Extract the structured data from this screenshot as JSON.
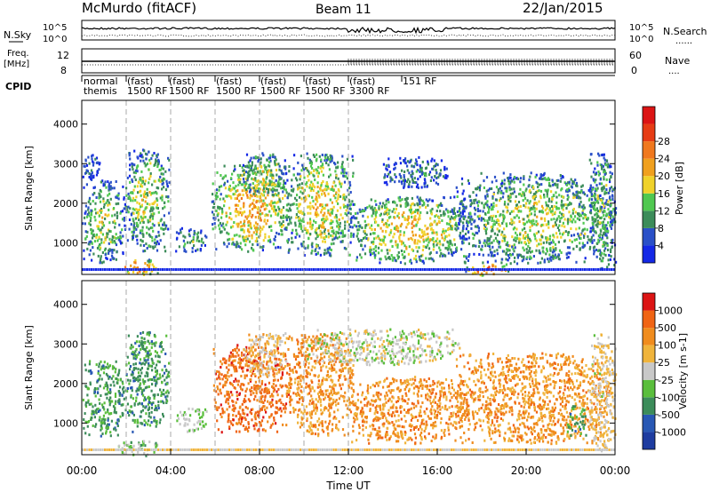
{
  "header": {
    "station": "McMurdo (fitACF)",
    "beam": "Beam 11",
    "date": "22/Jan/2015"
  },
  "noise_panel": {
    "left_label": "N.Sky",
    "right_label": "N.Search",
    "right_dots": "......",
    "ticks_left": [
      "10^5",
      "10^0"
    ],
    "ticks_right": [
      "10^5",
      "10^0"
    ]
  },
  "freq_panel": {
    "left_label_1": "Freq.",
    "left_label_2": "[MHz]",
    "right_label": "Nave",
    "right_dots": "....",
    "ticks_left": [
      "12",
      "8"
    ],
    "ticks_right": [
      "60",
      "0"
    ]
  },
  "cpid_panel": {
    "label": "CPID",
    "entries": [
      "normal",
      "themis",
      "(fast)",
      "1500 RF",
      "3300 RF",
      "151 RF"
    ]
  },
  "chart_data": [
    {
      "type": "heatmap",
      "name": "Power",
      "ylabel": "Slant Range [km]",
      "yticks": [
        "1000",
        "2000",
        "3000",
        "4000"
      ],
      "ylim": [
        200,
        4600
      ],
      "xlim": [
        0,
        24
      ],
      "colorbar": {
        "label": "Power [dB]",
        "ticks": [
          "4",
          "8",
          "12",
          "16",
          "20",
          "24",
          "28"
        ],
        "colors": [
          "#1428e6",
          "#2a50c8",
          "#3c8c5a",
          "#50c850",
          "#f0d22a",
          "#f0a01e",
          "#f0781e",
          "#e63c14",
          "#dc1414"
        ]
      },
      "echo_regions": [
        {
          "t0": 0.0,
          "t1": 1.9,
          "r0": 500,
          "r1": 2600,
          "level": 0.45
        },
        {
          "t0": 0.0,
          "t1": 0.8,
          "r0": 2600,
          "r1": 3300,
          "level": 0.15
        },
        {
          "t0": 1.6,
          "t1": 3.4,
          "r0": 200,
          "r1": 600,
          "level": 0.75
        },
        {
          "t0": 1.9,
          "t1": 3.9,
          "r0": 800,
          "r1": 3400,
          "level": 0.45
        },
        {
          "t0": 4.2,
          "t1": 5.6,
          "r0": 800,
          "r1": 1400,
          "level": 0.35
        },
        {
          "t0": 5.8,
          "t1": 9.4,
          "r0": 800,
          "r1": 3000,
          "level": 0.6
        },
        {
          "t0": 7.2,
          "t1": 9.2,
          "r0": 2200,
          "r1": 3300,
          "level": 0.45
        },
        {
          "t0": 9.2,
          "t1": 12.2,
          "r0": 700,
          "r1": 3300,
          "level": 0.55
        },
        {
          "t0": 12.0,
          "t1": 17.4,
          "r0": 500,
          "r1": 2200,
          "level": 0.55
        },
        {
          "t0": 13.5,
          "t1": 16.5,
          "r0": 2400,
          "r1": 3200,
          "level": 0.25
        },
        {
          "t0": 16.8,
          "t1": 23.9,
          "r0": 500,
          "r1": 2800,
          "level": 0.45
        },
        {
          "t0": 17.2,
          "t1": 19.2,
          "r0": 200,
          "r1": 500,
          "level": 0.85
        },
        {
          "t0": 22.8,
          "t1": 24.0,
          "r0": 300,
          "r1": 3300,
          "level": 0.4
        }
      ]
    },
    {
      "type": "heatmap",
      "name": "Velocity",
      "ylabel": "Slant Range [km]",
      "yticks": [
        "1000",
        "2000",
        "3000",
        "4000"
      ],
      "ylim": [
        200,
        4600
      ],
      "xlim": [
        0,
        24
      ],
      "xlabel": "Time UT",
      "xticks": [
        "00:00",
        "04:00",
        "08:00",
        "12:00",
        "16:00",
        "20:00",
        "00:00"
      ],
      "colorbar": {
        "label": "Velocity [m s-1]",
        "ticks": [
          "1000",
          "500",
          "100",
          "25",
          "-25",
          "-100",
          "-500",
          "-1000"
        ],
        "colors": [
          "#1e3ca0",
          "#2858b4",
          "#3c8c5a",
          "#5abe3c",
          "#c8c8c8",
          "#f0b43c",
          "#f08c1e",
          "#f06414",
          "#dc1414"
        ]
      },
      "echo_regions": [
        {
          "t0": 0.0,
          "t1": 1.9,
          "r0": 700,
          "r1": 2600,
          "level": 0.3
        },
        {
          "t0": 1.6,
          "t1": 3.4,
          "r0": 200,
          "r1": 600,
          "level": 0.4
        },
        {
          "t0": 1.9,
          "t1": 3.9,
          "r0": 800,
          "r1": 3400,
          "level": 0.3
        },
        {
          "t0": 4.2,
          "t1": 5.6,
          "r0": 800,
          "r1": 1400,
          "level": 0.45
        },
        {
          "t0": 5.8,
          "t1": 9.4,
          "r0": 800,
          "r1": 3000,
          "level": 0.8
        },
        {
          "t0": 7.2,
          "t1": 9.2,
          "r0": 2200,
          "r1": 3300,
          "level": 0.6
        },
        {
          "t0": 9.2,
          "t1": 12.2,
          "r0": 700,
          "r1": 3300,
          "level": 0.7
        },
        {
          "t0": 10.0,
          "t1": 17.0,
          "r0": 2500,
          "r1": 3400,
          "level": 0.5
        },
        {
          "t0": 12.0,
          "t1": 17.4,
          "r0": 500,
          "r1": 2200,
          "level": 0.72
        },
        {
          "t0": 16.8,
          "t1": 23.9,
          "r0": 500,
          "r1": 2800,
          "level": 0.7
        },
        {
          "t0": 21.8,
          "t1": 22.7,
          "r0": 700,
          "r1": 1500,
          "level": 0.3
        },
        {
          "t0": 22.8,
          "t1": 24.0,
          "r0": 300,
          "r1": 3300,
          "level": 0.55
        }
      ]
    }
  ]
}
